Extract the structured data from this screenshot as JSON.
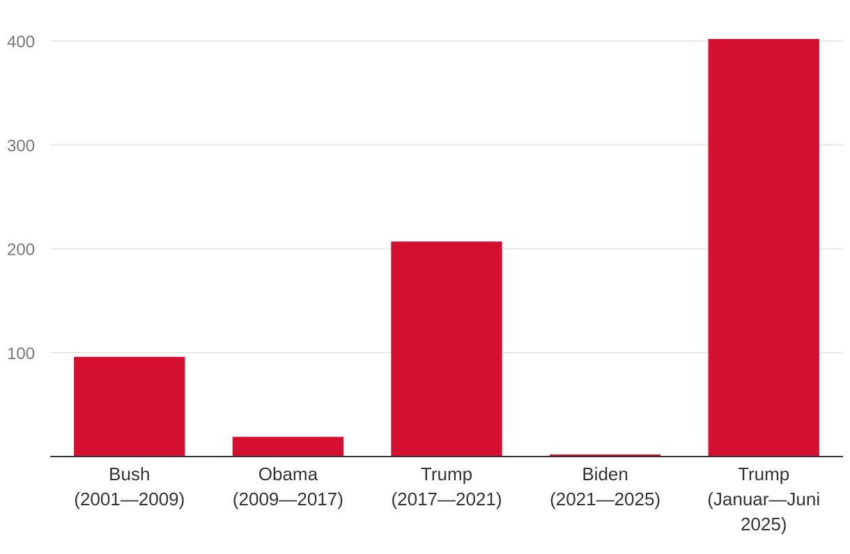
{
  "colors": {
    "bar": "#d50f30",
    "grid": "#e2e2e2",
    "axis": "#333333"
  },
  "chart_data": {
    "type": "bar",
    "title": "",
    "xlabel": "",
    "ylabel": "",
    "ylim": [
      0,
      400
    ],
    "yticks": [
      100,
      200,
      300,
      400
    ],
    "grid": true,
    "categories": [
      [
        "Bush",
        "(2001—2009)"
      ],
      [
        "Obama",
        "(2009—2017)"
      ],
      [
        "Trump",
        "(2017—2021)"
      ],
      [
        "Biden",
        "(2021—2025)"
      ],
      [
        "Trump",
        "(Januar—Juni",
        "2025)"
      ]
    ],
    "values": [
      96,
      19,
      207,
      2,
      402
    ]
  }
}
